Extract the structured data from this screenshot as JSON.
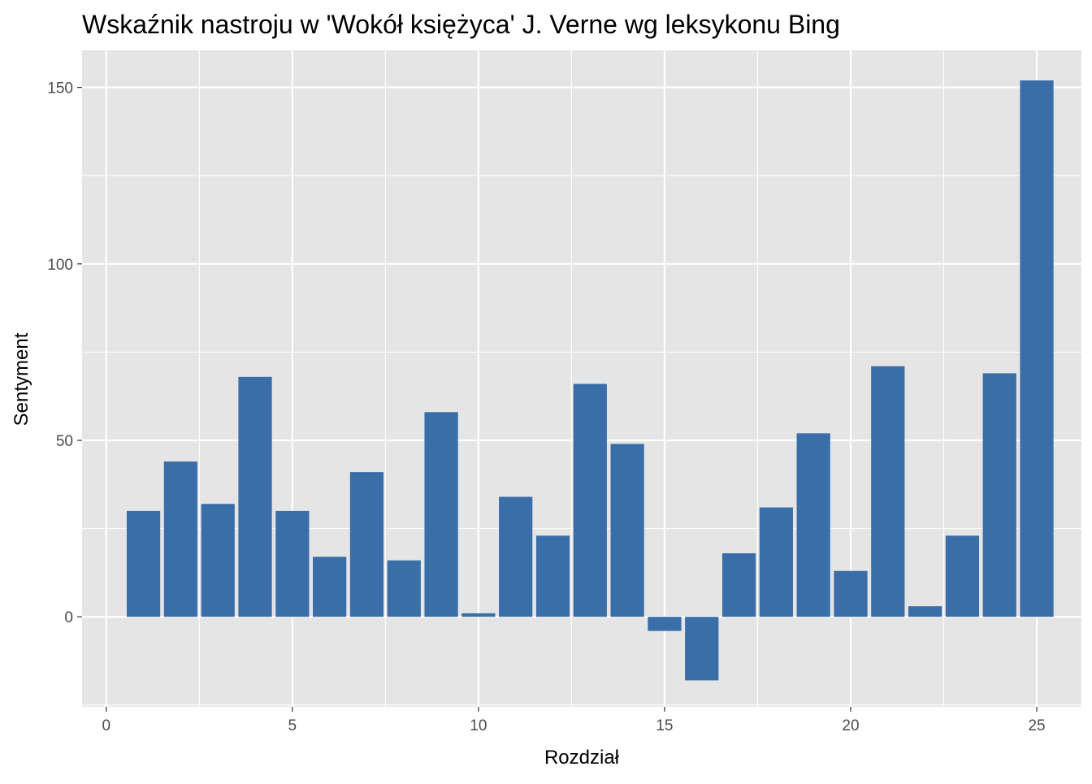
{
  "chart_data": {
    "type": "bar",
    "title": "Wskaźnik nastroju w 'Wokół księżyca' J. Verne wg leksykonu Bing",
    "xlabel": "Rozdział",
    "ylabel": "Sentyment",
    "x": [
      1,
      2,
      3,
      4,
      5,
      6,
      7,
      8,
      9,
      10,
      11,
      12,
      13,
      14,
      15,
      16,
      17,
      18,
      19,
      20,
      21,
      22,
      23,
      24,
      25
    ],
    "values": [
      30,
      44,
      32,
      68,
      30,
      17,
      41,
      16,
      58,
      1,
      34,
      23,
      66,
      49,
      -4,
      -18,
      18,
      31,
      52,
      13,
      71,
      3,
      23,
      69,
      152
    ],
    "xlim": [
      -0.65,
      26.2
    ],
    "ylim": [
      -25.5,
      160.5
    ],
    "x_ticks": [
      0,
      5,
      10,
      15,
      20,
      25
    ],
    "y_ticks": [
      0,
      50,
      100,
      150
    ],
    "bar_color": "#3a6ea8",
    "panel_color": "#e5e5e5",
    "grid": true,
    "legend": "none"
  }
}
